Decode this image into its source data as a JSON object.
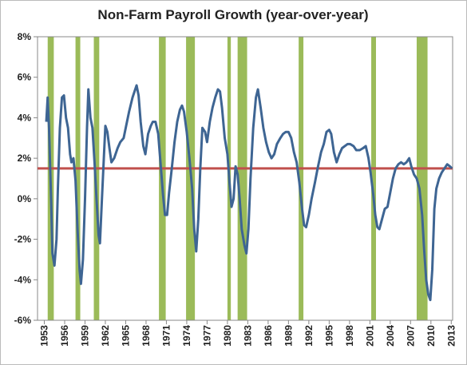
{
  "chart_data": {
    "type": "line",
    "title": "Non-Farm Payroll Growth (year-over-year)",
    "color": "#3e6593",
    "x": [
      1953.3,
      1953.5,
      1953.7,
      1954.0,
      1954.2,
      1954.5,
      1954.8,
      1955.0,
      1955.3,
      1955.6,
      1955.9,
      1956.2,
      1956.5,
      1956.8,
      1957.0,
      1957.3,
      1957.6,
      1957.9,
      1958.2,
      1958.4,
      1958.7,
      1959.0,
      1959.3,
      1959.5,
      1959.8,
      1960.1,
      1960.4,
      1960.7,
      1961.0,
      1961.2,
      1961.5,
      1961.8,
      1962.0,
      1962.3,
      1962.6,
      1962.9,
      1963.3,
      1963.8,
      1964.2,
      1964.7,
      1965.0,
      1965.5,
      1966.0,
      1966.4,
      1966.6,
      1966.9,
      1967.2,
      1967.6,
      1967.9,
      1968.3,
      1968.7,
      1969.0,
      1969.4,
      1969.8,
      1970.2,
      1970.5,
      1970.8,
      1971.1,
      1971.4,
      1971.8,
      1972.2,
      1972.6,
      1973.0,
      1973.3,
      1973.6,
      1974.0,
      1974.4,
      1974.8,
      1975.1,
      1975.4,
      1975.7,
      1976.0,
      1976.3,
      1976.7,
      1977.0,
      1977.4,
      1977.8,
      1978.2,
      1978.6,
      1978.9,
      1979.2,
      1979.6,
      1980.0,
      1980.3,
      1980.6,
      1980.9,
      1981.2,
      1981.5,
      1981.8,
      1982.1,
      1982.5,
      1982.8,
      1983.1,
      1983.4,
      1983.8,
      1984.2,
      1984.5,
      1984.9,
      1985.3,
      1985.7,
      1986.1,
      1986.5,
      1986.9,
      1987.3,
      1987.8,
      1988.2,
      1988.6,
      1989.0,
      1989.4,
      1989.8,
      1990.2,
      1990.6,
      1991.0,
      1991.3,
      1991.6,
      1992.0,
      1992.4,
      1992.9,
      1993.3,
      1993.8,
      1994.2,
      1994.6,
      1995.0,
      1995.3,
      1995.7,
      1996.1,
      1996.5,
      1996.9,
      1997.3,
      1997.7,
      1998.1,
      1998.6,
      1999.0,
      1999.5,
      2000.0,
      2000.4,
      2000.8,
      2001.1,
      2001.5,
      2001.8,
      2002.1,
      2002.4,
      2002.8,
      2003.2,
      2003.6,
      2004.0,
      2004.4,
      2004.8,
      2005.2,
      2005.6,
      2006.0,
      2006.4,
      2006.8,
      2007.1,
      2007.5,
      2007.9,
      2008.3,
      2008.7,
      2009.0,
      2009.3,
      2009.6,
      2009.9,
      2010.2,
      2010.5,
      2010.8,
      2011.2,
      2011.6,
      2012.0,
      2012.4,
      2012.8,
      2013.1
    ],
    "values": [
      3.8,
      5.0,
      3.5,
      0,
      -2.7,
      -3.3,
      -2.0,
      0.5,
      3.5,
      5.0,
      5.1,
      4.0,
      3.5,
      2.2,
      1.8,
      2.0,
      0.9,
      -1.5,
      -3.5,
      -4.2,
      -3.0,
      0,
      3.5,
      5.4,
      4.0,
      3.5,
      1.8,
      0,
      -1.8,
      -2.2,
      0,
      2.2,
      3.6,
      3.3,
      2.5,
      1.8,
      2.0,
      2.5,
      2.8,
      3.0,
      3.5,
      4.3,
      5.0,
      5.4,
      5.6,
      5.1,
      3.8,
      2.6,
      2.2,
      3.2,
      3.6,
      3.8,
      3.8,
      3.2,
      1.5,
      0.2,
      -0.8,
      -0.8,
      0.3,
      1.5,
      2.8,
      3.8,
      4.4,
      4.6,
      4.3,
      3.3,
      2.0,
      0.5,
      -1.5,
      -2.6,
      -1.0,
      1.5,
      3.5,
      3.3,
      2.8,
      3.8,
      4.5,
      5.0,
      5.4,
      5.3,
      4.5,
      3.0,
      2.2,
      0.8,
      -0.4,
      0,
      1.6,
      1.2,
      0,
      -1.5,
      -2.3,
      -2.7,
      -1.5,
      1.0,
      3.5,
      5.0,
      5.4,
      4.5,
      3.5,
      2.8,
      2.3,
      2.0,
      2.2,
      2.7,
      3.0,
      3.2,
      3.3,
      3.3,
      3.0,
      2.3,
      1.8,
      0.8,
      -0.5,
      -1.3,
      -1.4,
      -0.8,
      0,
      0.8,
      1.5,
      2.3,
      2.7,
      3.3,
      3.4,
      3.2,
      2.3,
      1.8,
      2.2,
      2.5,
      2.6,
      2.7,
      2.7,
      2.6,
      2.4,
      2.4,
      2.5,
      2.6,
      2.0,
      1.3,
      0.2,
      -0.8,
      -1.4,
      -1.5,
      -1.0,
      -0.5,
      -0.4,
      0.3,
      1.0,
      1.5,
      1.7,
      1.8,
      1.7,
      1.8,
      2.0,
      1.6,
      1.2,
      1.0,
      0.5,
      -0.8,
      -2.5,
      -4.0,
      -4.7,
      -5.0,
      -3.5,
      -0.5,
      0.5,
      1.0,
      1.3,
      1.5,
      1.7,
      1.6,
      1.5
    ],
    "recessions": [
      {
        "start": 1953.5,
        "end": 1954.4
      },
      {
        "start": 1957.6,
        "end": 1958.3
      },
      {
        "start": 1960.3,
        "end": 1961.1
      },
      {
        "start": 1969.9,
        "end": 1970.9
      },
      {
        "start": 1973.9,
        "end": 1975.2
      },
      {
        "start": 1980.0,
        "end": 1980.5
      },
      {
        "start": 1981.5,
        "end": 1982.9
      },
      {
        "start": 1990.5,
        "end": 1991.2
      },
      {
        "start": 2001.2,
        "end": 2001.9
      },
      {
        "start": 2007.9,
        "end": 2009.5
      }
    ],
    "recession_color": "#9bbb59",
    "reference_line": {
      "value": 1.5,
      "color": "#c0504d"
    },
    "xlim": [
      1952,
      2013.2
    ],
    "xticks": [
      1953,
      1956,
      1959,
      1962,
      1965,
      1968,
      1971,
      1974,
      1977,
      1980,
      1983,
      1986,
      1989,
      1992,
      1995,
      1998,
      2001,
      2004,
      2007,
      2010,
      2013
    ],
    "ylim": [
      -6,
      8
    ],
    "yticks": [
      {
        "value": -6,
        "label": "-6%"
      },
      {
        "value": -4,
        "label": "-4%"
      },
      {
        "value": -2,
        "label": "-2%"
      },
      {
        "value": 0,
        "label": "0%"
      },
      {
        "value": 2,
        "label": "2%"
      },
      {
        "value": 4,
        "label": "4%"
      },
      {
        "value": 6,
        "label": "6%"
      },
      {
        "value": 8,
        "label": "8%"
      }
    ]
  }
}
